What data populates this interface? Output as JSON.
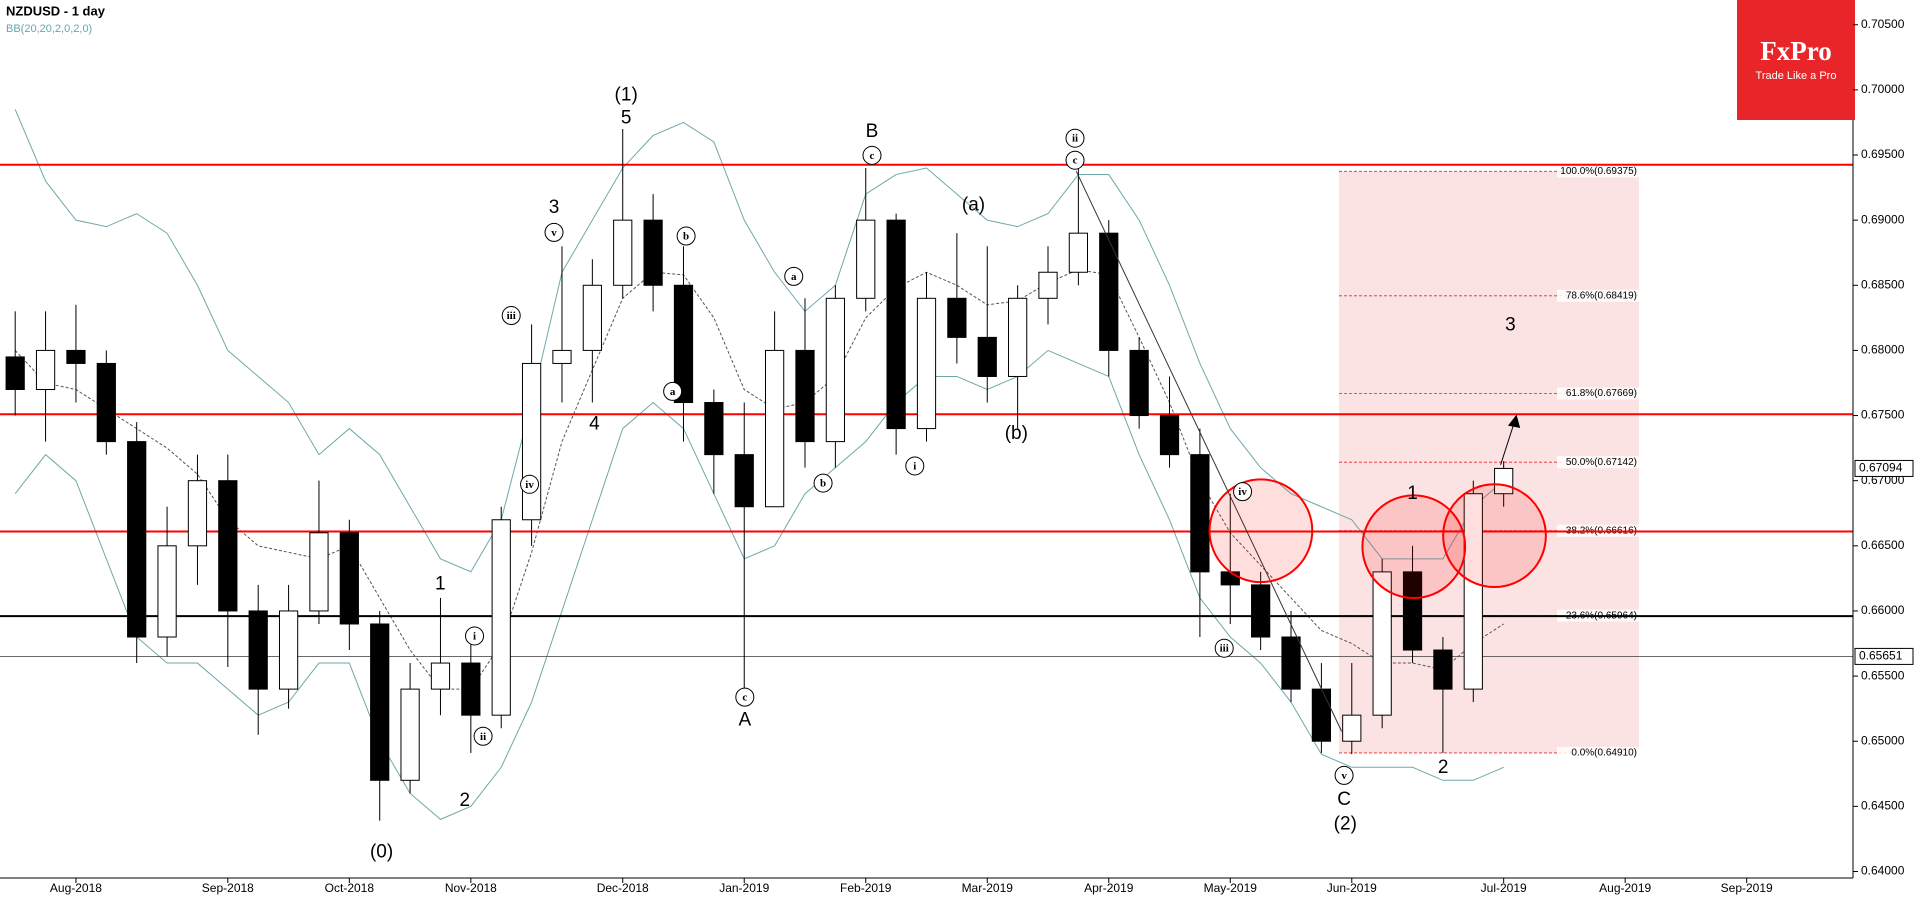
{
  "chart_data": {
    "type": "candlestick",
    "title": "NZDUSD - 1 day",
    "subtitle": "BB(20,20,2,0,2,0)",
    "categories": [
      null,
      null,
      "Aug-2018",
      null,
      null,
      null,
      null,
      "Sep-2018",
      null,
      null,
      null,
      "Oct-2018",
      null,
      null,
      null,
      "Nov-2018",
      null,
      null,
      null,
      null,
      "Dec-2018",
      null,
      null,
      null,
      "Jan-2019",
      null,
      null,
      null,
      "Feb-2019",
      null,
      null,
      null,
      "Mar-2019",
      null,
      null,
      null,
      "Apr-2019",
      null,
      null,
      null,
      "May-2019",
      null,
      null,
      null,
      "Jun-2019",
      null,
      null,
      null,
      null,
      "Jul-2019",
      null,
      null,
      null,
      "Aug-2019",
      null,
      null,
      null,
      "Sep-2019",
      null,
      null,
      null
    ],
    "open": [
      0.6795,
      0.677,
      0.68,
      0.679,
      0.673,
      0.658,
      0.665,
      0.67,
      0.66,
      0.654,
      0.66,
      0.666,
      0.659,
      0.647,
      0.654,
      0.656,
      0.652,
      0.667,
      0.679,
      0.68,
      0.685,
      0.69,
      0.685,
      0.676,
      0.672,
      0.668,
      0.68,
      0.673,
      0.684,
      0.69,
      0.674,
      0.684,
      0.681,
      0.678,
      0.684,
      0.686,
      0.689,
      0.68,
      0.675,
      0.672,
      0.663,
      0.662,
      0.658,
      0.654,
      0.65,
      0.652,
      0.663,
      0.657,
      0.654,
      0.669,
      null,
      null,
      null,
      null,
      null,
      null,
      null,
      null,
      null,
      null,
      null
    ],
    "high": [
      0.683,
      0.683,
      0.6835,
      0.68,
      0.6745,
      0.668,
      0.672,
      0.672,
      0.662,
      0.662,
      0.67,
      0.667,
      0.66,
      0.656,
      0.661,
      0.658,
      0.668,
      0.682,
      0.688,
      0.687,
      0.697,
      0.692,
      0.688,
      0.677,
      0.676,
      0.683,
      0.684,
      0.685,
      0.694,
      0.6905,
      0.686,
      0.689,
      0.688,
      0.685,
      0.688,
      0.6942,
      0.69,
      0.681,
      0.678,
      0.674,
      0.669,
      0.663,
      0.66,
      0.656,
      0.656,
      0.664,
      0.665,
      0.658,
      0.67,
      0.6715,
      null,
      null,
      null,
      null,
      null,
      null,
      null,
      null,
      null,
      null,
      null
    ],
    "low": [
      0.675,
      0.673,
      0.676,
      0.672,
      0.656,
      0.6565,
      0.662,
      0.6557,
      0.6505,
      0.6525,
      0.659,
      0.657,
      0.6439,
      0.646,
      0.652,
      0.6491,
      0.651,
      0.665,
      0.676,
      0.676,
      0.684,
      0.683,
      0.673,
      0.669,
      0.654,
      0.668,
      0.671,
      0.671,
      0.683,
      0.672,
      0.673,
      0.679,
      0.676,
      0.674,
      0.682,
      0.685,
      0.678,
      0.674,
      0.671,
      0.658,
      0.659,
      0.657,
      0.653,
      0.6491,
      0.649,
      0.651,
      0.656,
      0.6491,
      0.653,
      0.668,
      null,
      null,
      null,
      null,
      null,
      null,
      null,
      null,
      null,
      null,
      null
    ],
    "close": [
      0.677,
      0.68,
      0.679,
      0.673,
      0.658,
      0.665,
      0.67,
      0.66,
      0.654,
      0.66,
      0.666,
      0.659,
      0.647,
      0.654,
      0.656,
      0.652,
      0.667,
      0.679,
      0.68,
      0.685,
      0.69,
      0.685,
      0.676,
      0.672,
      0.668,
      0.68,
      0.673,
      0.684,
      0.69,
      0.674,
      0.684,
      0.681,
      0.678,
      0.684,
      0.686,
      0.689,
      0.68,
      0.675,
      0.672,
      0.663,
      0.662,
      0.658,
      0.654,
      0.65,
      0.652,
      0.663,
      0.657,
      0.654,
      0.669,
      0.67094,
      null,
      null,
      null,
      null,
      null,
      null,
      null,
      null,
      null,
      null,
      null
    ],
    "bands": {
      "color": "#6fa8a8",
      "upper": [
        0.6985,
        0.693,
        0.69,
        0.6895,
        0.6905,
        0.689,
        0.685,
        0.68,
        0.678,
        0.676,
        0.672,
        0.674,
        0.672,
        0.668,
        0.664,
        0.663,
        0.667,
        0.676,
        0.686,
        0.69,
        0.694,
        0.6965,
        0.6975,
        0.696,
        0.69,
        0.686,
        0.683,
        0.685,
        0.692,
        0.6935,
        0.694,
        0.692,
        0.69,
        0.6895,
        0.6905,
        0.6935,
        0.6935,
        0.69,
        0.685,
        0.679,
        0.674,
        0.671,
        0.669,
        0.668,
        0.667,
        0.664,
        0.664,
        0.664,
        0.668,
        0.67,
        null,
        null,
        null,
        null,
        null,
        null,
        null,
        null,
        null,
        null,
        null
      ],
      "middle": [
        0.68,
        0.6775,
        0.677,
        0.6755,
        0.674,
        0.6725,
        0.6705,
        0.667,
        0.665,
        0.6645,
        0.664,
        0.665,
        0.661,
        0.657,
        0.654,
        0.654,
        0.6575,
        0.6645,
        0.673,
        0.6785,
        0.684,
        0.686,
        0.6858,
        0.6825,
        0.677,
        0.6755,
        0.676,
        0.678,
        0.6825,
        0.6848,
        0.686,
        0.685,
        0.6835,
        0.6838,
        0.6852,
        0.6862,
        0.6858,
        0.681,
        0.676,
        0.67,
        0.666,
        0.6635,
        0.661,
        0.6585,
        0.6575,
        0.656,
        0.656,
        0.6555,
        0.6575,
        0.659,
        null,
        null,
        null,
        null,
        null,
        null,
        null,
        null,
        null,
        null,
        null
      ],
      "lower": [
        0.669,
        0.672,
        0.67,
        0.664,
        0.658,
        0.656,
        0.656,
        0.654,
        0.652,
        0.653,
        0.656,
        0.656,
        0.65,
        0.646,
        0.644,
        0.645,
        0.648,
        0.653,
        0.66,
        0.667,
        0.674,
        0.676,
        0.674,
        0.669,
        0.664,
        0.665,
        0.669,
        0.671,
        0.673,
        0.676,
        0.678,
        0.678,
        0.677,
        0.678,
        0.68,
        0.679,
        0.678,
        0.672,
        0.667,
        0.661,
        0.658,
        0.656,
        0.653,
        0.649,
        0.648,
        0.648,
        0.648,
        0.647,
        0.647,
        0.648,
        null,
        null,
        null,
        null,
        null,
        null,
        null,
        null,
        null,
        null,
        null
      ]
    },
    "ylim": [
      0.6395,
      0.7069
    ],
    "yticks": [
      {
        "value": 0.705,
        "label": "0.70500"
      },
      {
        "value": 0.7,
        "label": "0.70000"
      },
      {
        "value": 0.695,
        "label": "0.69500"
      },
      {
        "value": 0.69,
        "label": "0.69000"
      },
      {
        "value": 0.685,
        "label": "0.68500"
      },
      {
        "value": 0.68,
        "label": "0.68000"
      },
      {
        "value": 0.675,
        "label": "0.67500"
      },
      {
        "value": 0.67,
        "label": "0.67000"
      },
      {
        "value": 0.665,
        "label": "0.66500"
      },
      {
        "value": 0.66,
        "label": "0.66000"
      },
      {
        "value": 0.655,
        "label": "0.65500"
      },
      {
        "value": 0.65,
        "label": "0.65000"
      },
      {
        "value": 0.645,
        "label": "0.64500"
      },
      {
        "value": 0.64,
        "label": "0.64000"
      }
    ],
    "hlines": [
      {
        "value": 0.69425,
        "color": "#ff0000"
      },
      {
        "value": 0.6751,
        "color": "#ff0000"
      },
      {
        "value": 0.6661,
        "color": "#ff0000"
      },
      {
        "value": 0.6596,
        "color": "#000000"
      },
      {
        "value": 0.65651,
        "color": "#555555",
        "thin": true
      }
    ],
    "axis_marks": [
      0.67094,
      0.65651
    ],
    "fib_levels": [
      {
        "value": 0.69375,
        "label": "100.0%(0.69375)"
      },
      {
        "value": 0.68419,
        "label": "78.6%(0.68419)"
      },
      {
        "value": 0.67669,
        "label": "61.8%(0.67669)"
      },
      {
        "value": 0.67142,
        "label": "50.0%(0.67142)"
      },
      {
        "value": 0.66616,
        "label": "38.2%(0.66616)"
      },
      {
        "value": 0.65964,
        "label": "23.6%(0.65964)"
      },
      {
        "value": 0.6491,
        "label": "0.0%(0.64910)"
      }
    ],
    "fib_color": "#e8262a",
    "annotations": [
      {
        "text": "(1)"
      },
      {
        "text": "5"
      },
      {
        "text": "3"
      },
      {
        "text": "v",
        "circled": true
      },
      {
        "text": "iii",
        "circled": true
      },
      {
        "text": "iv",
        "circled": true
      },
      {
        "text": "4"
      },
      {
        "text": "1"
      },
      {
        "text": "i",
        "circled": true
      },
      {
        "text": "ii",
        "circled": true
      },
      {
        "text": "2"
      },
      {
        "text": "(0)"
      },
      {
        "text": "B"
      },
      {
        "text": "c",
        "circled": true
      },
      {
        "text": "b",
        "circled": true
      },
      {
        "text": "a",
        "circled": true
      },
      {
        "text": "a",
        "circled": true
      },
      {
        "text": "b",
        "circled": true
      },
      {
        "text": "c",
        "circled": true
      },
      {
        "text": "A"
      },
      {
        "text": "ii",
        "circled": true
      },
      {
        "text": "c",
        "circled": true
      },
      {
        "text": "(a)"
      },
      {
        "text": "(b)"
      },
      {
        "text": "i",
        "circled": true
      },
      {
        "text": "iv",
        "circled": true
      },
      {
        "text": "iii",
        "circled": true
      },
      {
        "text": "v",
        "circled": true
      },
      {
        "text": "C"
      },
      {
        "text": "(2)"
      },
      {
        "text": "1"
      },
      {
        "text": "2"
      },
      {
        "text": "3"
      }
    ]
  },
  "logo": {
    "name": "FxPro",
    "tagline": "Trade Like a Pro"
  }
}
